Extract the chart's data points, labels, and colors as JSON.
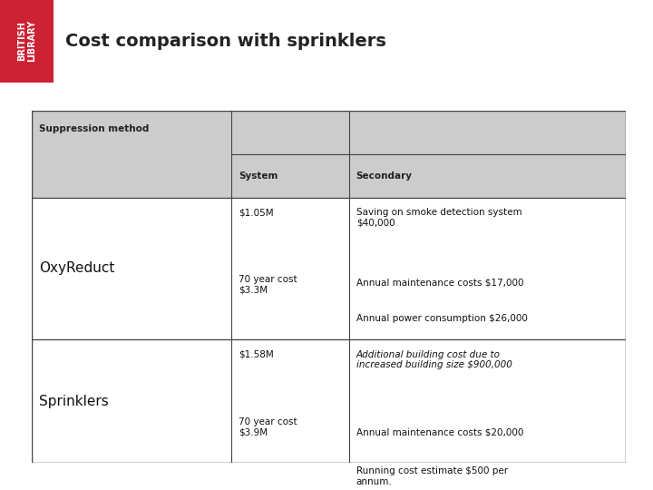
{
  "title": "Cost comparison with sprinklers",
  "title_color": "#222222",
  "header_bg": "#aacde0",
  "logo_bg": "#cc2233",
  "logo_text": "BRITISH\nLIBRARY",
  "table_header_bg": "#cccccc",
  "table_row_bg": "#ffffff",
  "table_border_color": "#444444",
  "col0_header": "Suppression method",
  "col1_header": "System",
  "col2_header": "Secondary",
  "row1_col0": "OxyReduct",
  "row1_col1_a": "$1.05M",
  "row1_col1_b": "70 year cost\n$3.3M",
  "row1_col2_a": "Saving on smoke detection system\n$40,000",
  "row1_col2_b": "Annual maintenance costs $17,000",
  "row1_col2_c": "Annual power consumption $26,000",
  "row2_col0": "Sprinklers",
  "row2_col1_a": "$1.58M",
  "row2_col1_b": "70 year cost\n$3.9M",
  "row2_col2_a": "Additional building cost due to\nincreased building size $900,000",
  "row2_col2_b": "Annual maintenance costs $20,000",
  "row2_col2_c": "Running cost estimate $500 per\nannum.",
  "fig_width": 7.2,
  "fig_height": 5.4,
  "dpi": 100
}
